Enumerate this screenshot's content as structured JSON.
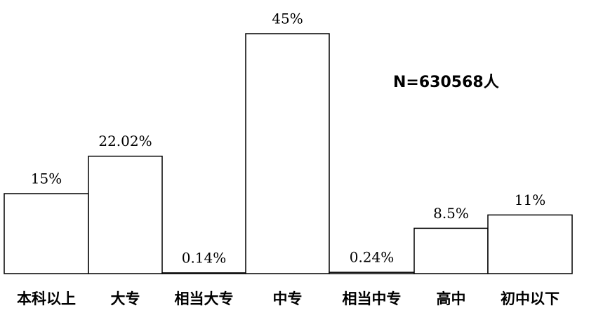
{
  "chart_data": {
    "type": "bar",
    "categories": [
      "本科以上",
      "大专",
      "相当大专",
      "中专",
      "相当中专",
      "高中",
      "初中以下"
    ],
    "values": [
      15,
      22.02,
      0.14,
      45,
      0.24,
      8.5,
      11
    ],
    "value_labels": [
      "15%",
      "22.02%",
      "0.14%",
      "45%",
      "0.24%",
      "8.5%",
      "11%"
    ],
    "annotation": "N=630568人",
    "color": "#ffffff"
  }
}
